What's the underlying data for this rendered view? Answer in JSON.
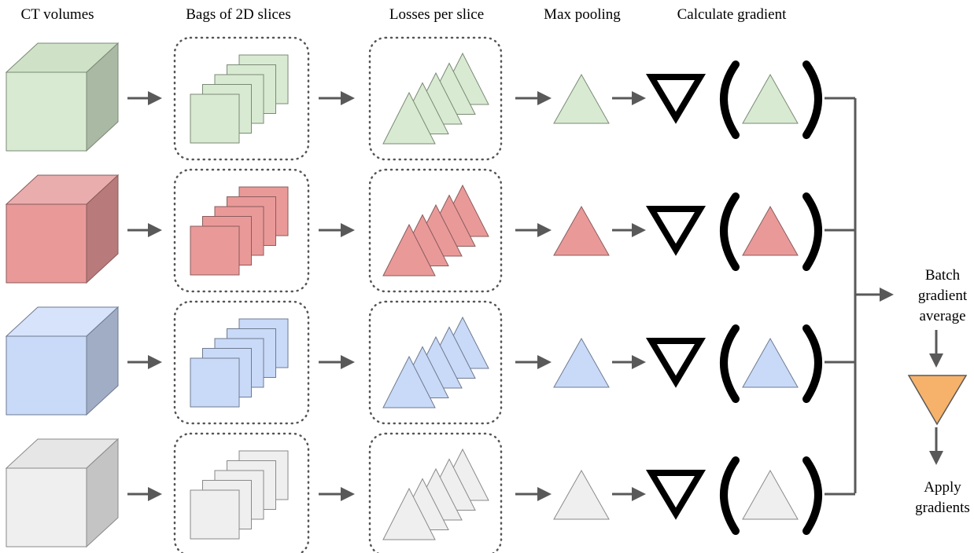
{
  "columns": [
    "CT volumes",
    "Bags of 2D slices",
    "Losses per slice",
    "Max pooling",
    "Calculate gradient"
  ],
  "batch_label": [
    "Batch",
    "gradient",
    "average"
  ],
  "apply_label": [
    "Apply",
    "gradients"
  ]
}
